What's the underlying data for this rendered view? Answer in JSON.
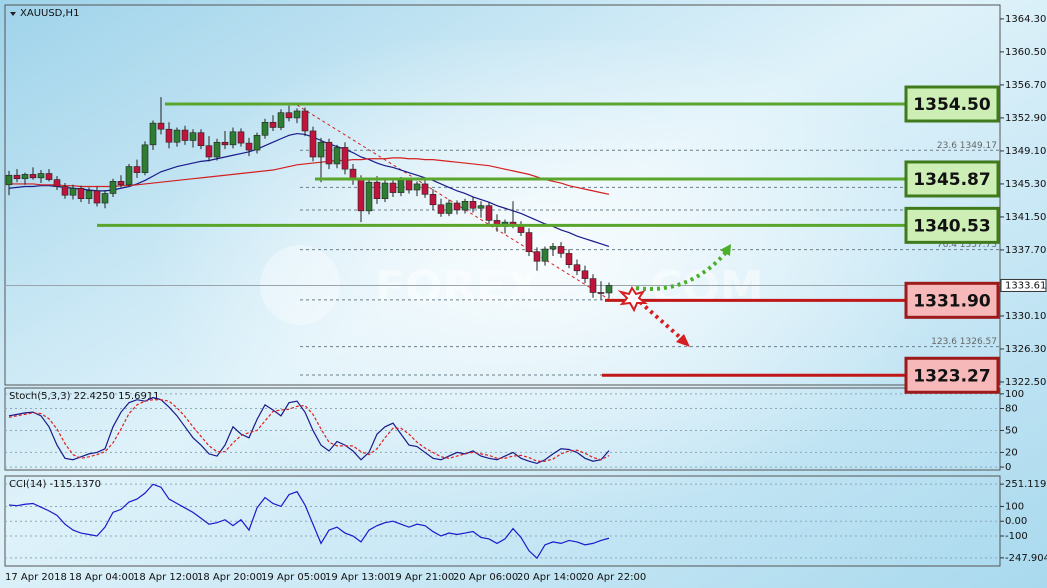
{
  "chart_data": [
    {
      "type": "candlestick",
      "title": "XAUUSD,H1",
      "bull_color": "#2f7d32",
      "bear_color": "#c0143c",
      "x": [
        "17 Apr 2018",
        null,
        null,
        null,
        null,
        null,
        null,
        null,
        "18 Apr 04:00",
        null,
        null,
        null,
        null,
        null,
        null,
        null,
        "18 Apr 12:00",
        null,
        null,
        null,
        null,
        null,
        null,
        null,
        "18 Apr 20:00",
        null,
        null,
        null,
        null,
        null,
        null,
        null,
        "19 Apr 05:00",
        null,
        null,
        null,
        null,
        null,
        null,
        null,
        "19 Apr 13:00",
        null,
        null,
        null,
        null,
        null,
        null,
        null,
        "19 Apr 21:00",
        null,
        null,
        null,
        null,
        null,
        null,
        null,
        "20 Apr 06:00",
        null,
        null,
        null,
        null,
        null,
        null,
        null,
        "20 Apr 14:00",
        null,
        null,
        null,
        null,
        null,
        null,
        null,
        "20 Apr 22:00",
        null,
        null,
        null
      ],
      "candles": [
        [
          1345.2,
          1346.8,
          1344.0,
          1346.3
        ],
        [
          1346.3,
          1347.0,
          1345.5,
          1345.9
        ],
        [
          1345.9,
          1346.6,
          1345.2,
          1346.4
        ],
        [
          1346.4,
          1347.2,
          1345.8,
          1346.0
        ],
        [
          1346.0,
          1346.9,
          1345.4,
          1346.5
        ],
        [
          1346.5,
          1347.0,
          1345.6,
          1345.8
        ],
        [
          1345.8,
          1346.2,
          1344.6,
          1345.0
        ],
        [
          1345.0,
          1345.4,
          1343.6,
          1344.0
        ],
        [
          1344.0,
          1345.2,
          1343.5,
          1344.8
        ],
        [
          1344.8,
          1345.1,
          1343.2,
          1343.6
        ],
        [
          1343.6,
          1344.9,
          1343.0,
          1344.5
        ],
        [
          1344.5,
          1345.0,
          1342.7,
          1343.1
        ],
        [
          1343.1,
          1344.6,
          1342.5,
          1344.2
        ],
        [
          1344.2,
          1345.9,
          1343.8,
          1345.6
        ],
        [
          1345.6,
          1346.3,
          1344.9,
          1345.2
        ],
        [
          1345.2,
          1347.6,
          1345.0,
          1347.3
        ],
        [
          1347.3,
          1348.1,
          1346.0,
          1346.6
        ],
        [
          1346.6,
          1350.2,
          1346.3,
          1349.8
        ],
        [
          1349.8,
          1352.6,
          1349.2,
          1352.3
        ],
        [
          1352.3,
          1355.3,
          1351.0,
          1351.6
        ],
        [
          1351.6,
          1352.4,
          1349.4,
          1350.1
        ],
        [
          1350.1,
          1351.8,
          1349.6,
          1351.5
        ],
        [
          1351.5,
          1352.0,
          1349.8,
          1350.3
        ],
        [
          1350.3,
          1351.6,
          1349.5,
          1351.2
        ],
        [
          1351.2,
          1351.6,
          1349.3,
          1349.7
        ],
        [
          1349.7,
          1350.8,
          1347.9,
          1348.4
        ],
        [
          1348.4,
          1350.5,
          1348.0,
          1350.1
        ],
        [
          1350.1,
          1351.4,
          1349.3,
          1349.8
        ],
        [
          1349.8,
          1351.8,
          1349.4,
          1351.3
        ],
        [
          1351.3,
          1351.7,
          1349.6,
          1350.0
        ],
        [
          1350.0,
          1350.6,
          1348.5,
          1349.2
        ],
        [
          1349.2,
          1351.2,
          1348.8,
          1350.9
        ],
        [
          1350.9,
          1352.8,
          1350.5,
          1352.4
        ],
        [
          1352.4,
          1353.2,
          1351.4,
          1351.8
        ],
        [
          1351.8,
          1353.9,
          1351.5,
          1353.5
        ],
        [
          1353.5,
          1354.3,
          1352.5,
          1352.9
        ],
        [
          1352.9,
          1354.0,
          1352.3,
          1353.7
        ],
        [
          1353.7,
          1354.1,
          1350.8,
          1351.4
        ],
        [
          1351.4,
          1351.9,
          1347.9,
          1348.4
        ],
        [
          1348.4,
          1350.6,
          1345.5,
          1350.1
        ],
        [
          1350.1,
          1350.5,
          1347.0,
          1347.6
        ],
        [
          1347.6,
          1349.8,
          1347.1,
          1349.5
        ],
        [
          1349.5,
          1350.1,
          1346.4,
          1347.0
        ],
        [
          1347.0,
          1347.6,
          1345.2,
          1345.9
        ],
        [
          1345.9,
          1346.3,
          1340.9,
          1342.2
        ],
        [
          1342.2,
          1346.0,
          1341.8,
          1345.5
        ],
        [
          1345.5,
          1346.2,
          1343.0,
          1343.6
        ],
        [
          1343.6,
          1345.9,
          1343.2,
          1345.4
        ],
        [
          1345.4,
          1345.8,
          1343.8,
          1344.3
        ],
        [
          1344.3,
          1346.1,
          1343.9,
          1345.7
        ],
        [
          1345.7,
          1346.0,
          1344.2,
          1344.6
        ],
        [
          1344.6,
          1345.6,
          1343.9,
          1345.3
        ],
        [
          1345.3,
          1345.7,
          1343.7,
          1344.1
        ],
        [
          1344.1,
          1344.7,
          1342.3,
          1342.9
        ],
        [
          1342.9,
          1343.6,
          1341.5,
          1341.9
        ],
        [
          1341.9,
          1343.5,
          1341.6,
          1343.1
        ],
        [
          1343.1,
          1343.4,
          1341.8,
          1342.3
        ],
        [
          1342.3,
          1343.6,
          1341.9,
          1343.3
        ],
        [
          1343.3,
          1343.8,
          1342.0,
          1342.5
        ],
        [
          1342.5,
          1343.3,
          1341.4,
          1342.8
        ],
        [
          1342.8,
          1343.2,
          1340.6,
          1341.1
        ],
        [
          1341.1,
          1341.8,
          1339.8,
          1340.4
        ],
        [
          1340.4,
          1341.2,
          1339.6,
          1340.9
        ],
        [
          1340.9,
          1343.3,
          1340.2,
          1340.6
        ],
        [
          1340.6,
          1341.0,
          1339.3,
          1339.7
        ],
        [
          1339.7,
          1340.2,
          1337.0,
          1337.5
        ],
        [
          1337.5,
          1338.0,
          1335.3,
          1336.4
        ],
        [
          1336.4,
          1338.1,
          1335.9,
          1337.8
        ],
        [
          1337.8,
          1338.5,
          1337.0,
          1338.1
        ],
        [
          1338.1,
          1338.6,
          1336.8,
          1337.3
        ],
        [
          1337.3,
          1337.8,
          1335.6,
          1336.0
        ],
        [
          1336.0,
          1336.6,
          1334.8,
          1335.3
        ],
        [
          1335.3,
          1335.9,
          1333.9,
          1334.4
        ],
        [
          1334.4,
          1334.9,
          1332.2,
          1332.8
        ],
        [
          1332.8,
          1334.1,
          1332.0,
          1332.75
        ],
        [
          1332.75,
          1333.93,
          1332.13,
          1333.61
        ]
      ],
      "series": [
        {
          "color": "#1a1a8c",
          "values": [
            1344.8,
            1344.9,
            1345.0,
            1345.0,
            1345.1,
            1345.1,
            1345.0,
            1344.9,
            1344.8,
            1344.7,
            1344.6,
            1344.5,
            1344.5,
            1344.6,
            1344.8,
            1345.0,
            1345.3,
            1345.7,
            1346.2,
            1346.7,
            1347.0,
            1347.3,
            1347.5,
            1347.7,
            1347.9,
            1348.0,
            1348.2,
            1348.4,
            1348.6,
            1348.8,
            1349.0,
            1349.3,
            1349.7,
            1350.1,
            1350.5,
            1350.9,
            1351.1,
            1351.0,
            1350.7,
            1350.3,
            1349.9,
            1349.6,
            1349.3,
            1348.9,
            1348.4,
            1348.1,
            1347.7,
            1347.4,
            1347.2,
            1346.9,
            1346.6,
            1346.3,
            1346.0,
            1345.7,
            1345.3,
            1344.9,
            1344.5,
            1344.2,
            1343.8,
            1343.5,
            1343.2,
            1342.8,
            1342.5,
            1342.2,
            1341.9,
            1341.5,
            1341.1,
            1340.7,
            1340.4,
            1340.0,
            1339.7,
            1339.3,
            1339.0,
            1338.7,
            1338.4,
            1338.1
          ]
        },
        {
          "color": "#d42020",
          "values": [
            1345.3,
            1345.3,
            1345.3,
            1345.3,
            1345.2,
            1345.2,
            1345.2,
            1345.1,
            1345.1,
            1345.0,
            1345.0,
            1345.0,
            1345.0,
            1345.0,
            1345.1,
            1345.1,
            1345.2,
            1345.3,
            1345.4,
            1345.5,
            1345.6,
            1345.7,
            1345.8,
            1345.9,
            1346.0,
            1346.1,
            1346.2,
            1346.3,
            1346.4,
            1346.5,
            1346.6,
            1346.7,
            1346.8,
            1346.9,
            1347.1,
            1347.3,
            1347.5,
            1347.6,
            1347.7,
            1347.8,
            1347.9,
            1348.0,
            1348.0,
            1348.1,
            1348.1,
            1348.2,
            1348.2,
            1348.2,
            1348.3,
            1348.3,
            1348.2,
            1348.2,
            1348.1,
            1348.1,
            1348.0,
            1347.9,
            1347.8,
            1347.7,
            1347.6,
            1347.5,
            1347.4,
            1347.2,
            1347.0,
            1346.8,
            1346.6,
            1346.4,
            1346.1,
            1345.8,
            1345.6,
            1345.4,
            1345.1,
            1344.9,
            1344.7,
            1344.5,
            1344.3,
            1344.1
          ]
        }
      ],
      "levels": [
        {
          "value": 1354.5,
          "label": "1354.50",
          "color": "green"
        },
        {
          "value": 1345.87,
          "label": "1345.87",
          "color": "green"
        },
        {
          "value": 1340.53,
          "label": "1340.53",
          "color": "green"
        },
        {
          "value": 1331.9,
          "label": "1331.90",
          "color": "red"
        },
        {
          "value": 1323.27,
          "label": "1323.27",
          "color": "red"
        }
      ],
      "fib_levels": [
        {
          "value": 1349.17,
          "label": "23.6 1349.17"
        },
        {
          "value": 1344.9
        },
        {
          "value": 1342.3
        },
        {
          "value": 1337.73,
          "label": "76.4 1337.73"
        },
        {
          "value": 1331.95
        },
        {
          "value": 1326.57,
          "label": "123.6 1326.57"
        },
        {
          "value": 1323.3
        }
      ],
      "watermark": [
        "FOREX",
        "COM"
      ],
      "ylim": [
        1322.15,
        1365.9
      ],
      "yticks": [
        {
          "value": 1364.3,
          "label": "1364.30"
        },
        {
          "value": 1360.5,
          "label": "1360.50"
        },
        {
          "value": 1356.7,
          "label": "1356.70"
        },
        {
          "value": 1352.9,
          "label": "1352.90"
        },
        {
          "value": 1349.1,
          "label": "1349.10"
        },
        {
          "value": 1345.3,
          "label": "1345.30"
        },
        {
          "value": 1341.5,
          "label": "1341.50"
        },
        {
          "value": 1337.7,
          "label": "1337.70"
        },
        {
          "value": 1330.1,
          "label": "1330.10"
        },
        {
          "value": 1326.3,
          "label": "1326.30"
        },
        {
          "value": 1322.5,
          "label": "1322.50"
        }
      ]
    },
    {
      "type": "line",
      "title": "Stoch(5,3,3) 22.4250 15.6911",
      "grid": true,
      "series": [
        {
          "color": "#1a1a8c",
          "values": [
            70,
            72,
            74,
            75,
            70,
            55,
            30,
            12,
            10,
            14,
            18,
            20,
            25,
            55,
            75,
            88,
            92,
            90,
            95,
            92,
            82,
            70,
            55,
            40,
            30,
            18,
            15,
            30,
            55,
            45,
            40,
            65,
            85,
            78,
            70,
            88,
            90,
            75,
            50,
            30,
            22,
            35,
            30,
            22,
            10,
            20,
            45,
            55,
            60,
            45,
            30,
            28,
            20,
            12,
            10,
            15,
            20,
            18,
            22,
            15,
            12,
            10,
            15,
            20,
            12,
            8,
            5,
            10,
            18,
            25,
            24,
            20,
            12,
            8,
            10,
            22.425
          ]
        },
        {
          "color": "#e02020",
          "dashed": true,
          "values": [
            68,
            70,
            72,
            74,
            73,
            66,
            52,
            32,
            17,
            12,
            14,
            17,
            21,
            33,
            52,
            73,
            85,
            90,
            92,
            92,
            90,
            81,
            69,
            55,
            42,
            29,
            21,
            21,
            33,
            43,
            47,
            50,
            63,
            76,
            78,
            79,
            83,
            84,
            72,
            52,
            34,
            29,
            29,
            29,
            21,
            17,
            25,
            40,
            53,
            53,
            45,
            34,
            26,
            20,
            14,
            12,
            15,
            18,
            20,
            18,
            16,
            12,
            12,
            15,
            16,
            13,
            8,
            8,
            11,
            18,
            22,
            23,
            19,
            13,
            10,
            15.6911
          ]
        }
      ],
      "ylim": [
        -4,
        108
      ],
      "yticks": [
        100,
        80,
        50,
        20,
        0
      ]
    },
    {
      "type": "line",
      "title": "CCI(14) -115.1370",
      "grid": true,
      "series": [
        {
          "color": "#1a1acc",
          "values": [
            110,
            105,
            115,
            120,
            95,
            70,
            40,
            -20,
            -60,
            -80,
            -90,
            -100,
            -40,
            60,
            80,
            130,
            150,
            190,
            250,
            230,
            150,
            120,
            90,
            60,
            20,
            -20,
            -10,
            10,
            -30,
            10,
            -60,
            90,
            160,
            120,
            100,
            180,
            200,
            110,
            -20,
            -150,
            -60,
            -40,
            -80,
            -100,
            -140,
            -60,
            -30,
            -10,
            0,
            -20,
            -40,
            -20,
            -30,
            -70,
            -100,
            -80,
            -90,
            -80,
            -70,
            -110,
            -120,
            -150,
            -120,
            -50,
            -110,
            -200,
            -250,
            -160,
            -140,
            -150,
            -130,
            -140,
            -160,
            -150,
            -130,
            -115.137
          ]
        }
      ],
      "ylim": [
        -303,
        306
      ],
      "yticks": [
        251.119,
        100,
        {
          "value": 0,
          "label": "0.00"
        },
        -100,
        -247.9046
      ]
    }
  ]
}
